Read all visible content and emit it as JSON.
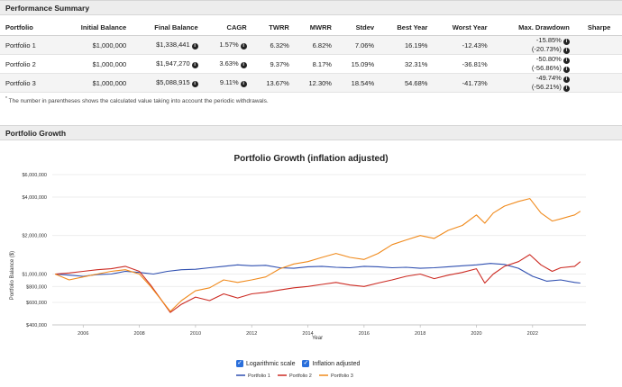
{
  "performance": {
    "title": "Performance Summary",
    "columns": [
      "Portfolio",
      "Initial Balance",
      "Final Balance",
      "CAGR",
      "TWRR",
      "MWRR",
      "Stdev",
      "Best Year",
      "Worst Year",
      "Max. Drawdown",
      "Sharpe"
    ],
    "rows": [
      {
        "name": "Portfolio 1",
        "initial": "$1,000,000",
        "final": "$1,338,441",
        "cagr": "1.57%",
        "twrr": "6.32%",
        "mwrr": "6.82%",
        "stdev": "7.06%",
        "best": "16.19%",
        "worst": "-12.43%",
        "dd": "-15.85%",
        "dd2": "(-20.73%)"
      },
      {
        "name": "Portfolio 2",
        "initial": "$1,000,000",
        "final": "$1,947,270",
        "cagr": "3.63%",
        "twrr": "9.37%",
        "mwrr": "8.17%",
        "stdev": "15.09%",
        "best": "32.31%",
        "worst": "-36.81%",
        "dd": "-50.80%",
        "dd2": "(-56.86%)"
      },
      {
        "name": "Portfolio 3",
        "initial": "$1,000,000",
        "final": "$5,088,915",
        "cagr": "9.11%",
        "twrr": "13.67%",
        "mwrr": "12.30%",
        "stdev": "18.54%",
        "best": "54.68%",
        "worst": "-41.73%",
        "dd": "-49.74%",
        "dd2": "(-56.21%)"
      }
    ],
    "footnote_mark": "*",
    "footnote": "The number in parentheses shows the calculated value taking into account the periodic withdrawals."
  },
  "growth": {
    "title": "Portfolio Growth",
    "log_label": "Logarithmic scale",
    "infl_label": "Inflation adjusted",
    "log_checked": true,
    "infl_checked": true
  },
  "chart_data": {
    "type": "line",
    "title": "Portfolio Growth (inflation adjusted)",
    "xlabel": "Year",
    "ylabel": "Portfolio Balance ($)",
    "yscale": "log",
    "ylim": [
      400000,
      6000000
    ],
    "xlim": [
      2004.9,
      2023.9
    ],
    "y_ticks": [
      400000,
      600000,
      800000,
      1000000,
      2000000,
      4000000,
      6000000
    ],
    "y_tick_labels": [
      "$400,000",
      "$600,000",
      "$800,000",
      "$1,000,000",
      "$2,000,000",
      "$4,000,000",
      "$6,000,000"
    ],
    "x_ticks": [
      2006,
      2008,
      2010,
      2012,
      2014,
      2016,
      2018,
      2020,
      2022
    ],
    "x_tick_labels": [
      "2006",
      "2008",
      "2010",
      "2012",
      "2014",
      "2016",
      "2018",
      "2020",
      "2022"
    ],
    "legend_position": "bottom-center",
    "series": [
      {
        "name": "Portfolio 1",
        "color": "#2f4fb0",
        "x": [
          2005,
          2005.5,
          2006,
          2006.5,
          2007,
          2007.5,
          2008,
          2008.5,
          2009,
          2009.5,
          2010,
          2010.5,
          2011,
          2011.5,
          2012,
          2012.5,
          2013,
          2013.5,
          2014,
          2014.5,
          2015,
          2015.5,
          2016,
          2016.5,
          2017,
          2017.5,
          2018,
          2018.5,
          2019,
          2019.5,
          2020,
          2020.5,
          2021,
          2021.5,
          2022,
          2022.5,
          2023,
          2023.5,
          2023.7
        ],
        "y": [
          1000000,
          980000,
          960000,
          990000,
          1000000,
          1050000,
          1030000,
          1000000,
          1050000,
          1080000,
          1090000,
          1120000,
          1150000,
          1180000,
          1160000,
          1170000,
          1120000,
          1110000,
          1140000,
          1150000,
          1130000,
          1120000,
          1150000,
          1140000,
          1120000,
          1130000,
          1110000,
          1120000,
          1140000,
          1160000,
          1180000,
          1210000,
          1190000,
          1110000,
          960000,
          880000,
          900000,
          860000,
          850000
        ]
      },
      {
        "name": "Portfolio 2",
        "color": "#cc2a22",
        "x": [
          2005,
          2005.5,
          2006,
          2006.5,
          2007,
          2007.5,
          2008,
          2008.4,
          2008.8,
          2009.1,
          2009.5,
          2010,
          2010.5,
          2011,
          2011.5,
          2012,
          2012.5,
          2013,
          2013.5,
          2014,
          2014.5,
          2015,
          2015.5,
          2016,
          2016.5,
          2017,
          2017.5,
          2018,
          2018.5,
          2019,
          2019.5,
          2020,
          2020.3,
          2020.6,
          2021,
          2021.5,
          2021.9,
          2022.3,
          2022.7,
          2023,
          2023.5,
          2023.7
        ],
        "y": [
          1000000,
          1020000,
          1050000,
          1080000,
          1100000,
          1150000,
          1050000,
          820000,
          620000,
          500000,
          580000,
          660000,
          620000,
          700000,
          650000,
          700000,
          720000,
          750000,
          780000,
          800000,
          830000,
          860000,
          820000,
          800000,
          850000,
          900000,
          960000,
          1000000,
          920000,
          980000,
          1030000,
          1100000,
          850000,
          1000000,
          1150000,
          1250000,
          1420000,
          1180000,
          1050000,
          1120000,
          1150000,
          1250000
        ]
      },
      {
        "name": "Portfolio 3",
        "color": "#f08a1c",
        "x": [
          2005,
          2005.5,
          2006,
          2006.5,
          2007,
          2007.5,
          2008,
          2008.4,
          2008.8,
          2009.1,
          2009.5,
          2010,
          2010.5,
          2011,
          2011.5,
          2012,
          2012.5,
          2013,
          2013.5,
          2014,
          2014.5,
          2015,
          2015.5,
          2016,
          2016.5,
          2017,
          2017.5,
          2018,
          2018.5,
          2019,
          2019.5,
          2020,
          2020.3,
          2020.6,
          2021,
          2021.5,
          2021.9,
          2022.3,
          2022.7,
          2023,
          2023.5,
          2023.7
        ],
        "y": [
          1000000,
          900000,
          950000,
          1000000,
          1050000,
          1080000,
          1000000,
          800000,
          620000,
          510000,
          620000,
          740000,
          780000,
          900000,
          860000,
          900000,
          950000,
          1100000,
          1200000,
          1250000,
          1350000,
          1450000,
          1350000,
          1300000,
          1450000,
          1700000,
          1850000,
          2000000,
          1900000,
          2200000,
          2400000,
          2900000,
          2500000,
          3000000,
          3400000,
          3700000,
          3900000,
          3000000,
          2600000,
          2700000,
          2900000,
          3100000
        ]
      }
    ]
  }
}
